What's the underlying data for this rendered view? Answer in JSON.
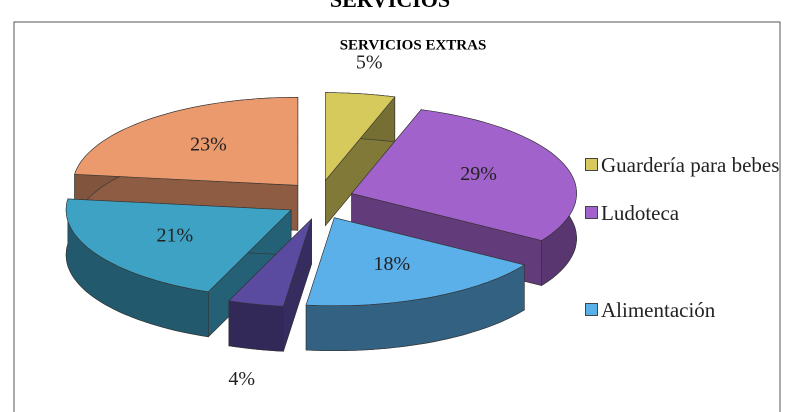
{
  "page_title": "SERVICIOS",
  "chart_data": {
    "type": "pie3d",
    "title": "SERVICIOS EXTRAS",
    "categories": [
      "Guardería para bebes",
      "Ludoteca",
      "Alimentación",
      null,
      null,
      null
    ],
    "values": [
      5,
      29,
      18,
      4,
      21,
      23
    ],
    "value_labels": [
      "5%",
      "29%",
      "18%",
      "4%",
      "21%",
      "23%"
    ],
    "colors": [
      "#d6ca5c",
      "#a262cc",
      "#5cb0ea",
      "#5a4aa0",
      "#3ea2c4",
      "#eb9a6e"
    ],
    "legend": "right"
  }
}
